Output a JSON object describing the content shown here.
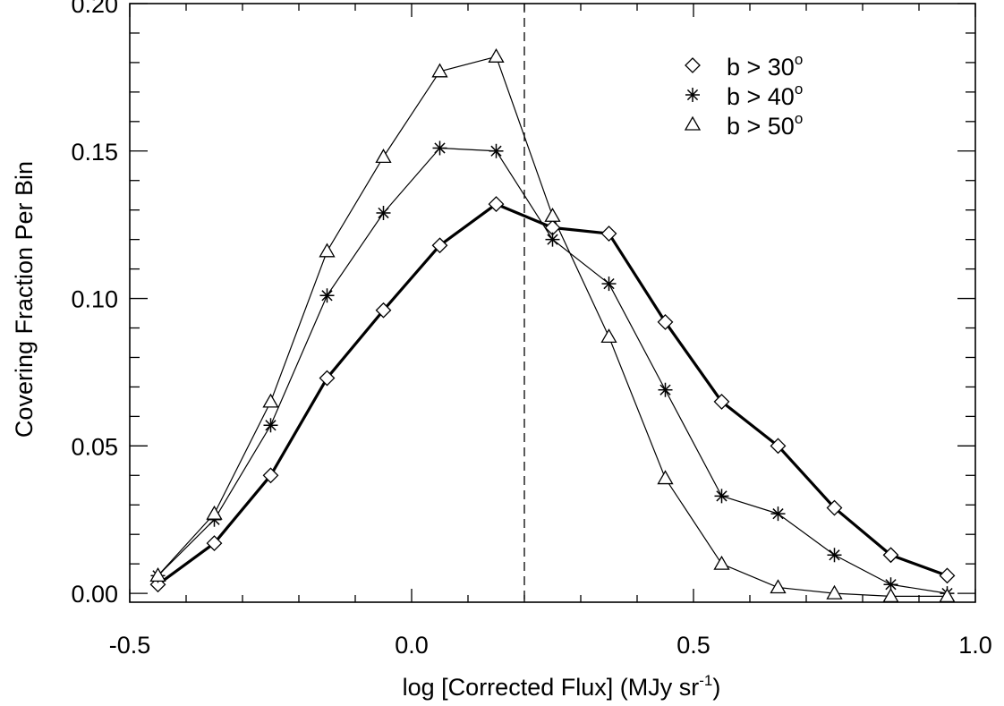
{
  "chart_data": {
    "type": "line",
    "title": "",
    "xlabel": "log [Corrected Flux] (MJy sr",
    "xlabel_sup": "-1",
    "xlabel_suffix": ")",
    "ylabel": "Covering Fraction Per Bin",
    "xlim": [
      -0.5,
      1.0
    ],
    "ylim": [
      -0.003,
      0.2
    ],
    "xticks": [
      -0.5,
      0.0,
      0.5,
      1.0
    ],
    "xtick_labels": [
      "-0.5",
      "0.0",
      "0.5",
      "1.0"
    ],
    "xminor_step": 0.1,
    "yticks": [
      0.0,
      0.05,
      0.1,
      0.15,
      0.2
    ],
    "ytick_labels": [
      "0.00",
      "0.05",
      "0.10",
      "0.15",
      "0.20"
    ],
    "yminor_step": 0.01,
    "grid": false,
    "legend_position": "top-right",
    "reference_line": {
      "x": 0.2,
      "style": "dashed"
    },
    "x": [
      -0.45,
      -0.35,
      -0.25,
      -0.15,
      -0.05,
      0.05,
      0.15,
      0.25,
      0.35,
      0.45,
      0.55,
      0.65,
      0.75,
      0.85,
      0.95
    ],
    "series": [
      {
        "name": "b > 30",
        "name_sup": "o",
        "marker": "diamond",
        "line": "thick",
        "values": [
          0.003,
          0.017,
          0.04,
          0.073,
          0.096,
          0.118,
          0.132,
          0.124,
          0.122,
          0.092,
          0.065,
          0.05,
          0.029,
          0.013,
          0.006
        ]
      },
      {
        "name": "b > 40",
        "name_sup": "o",
        "marker": "asterisk",
        "line": "thin",
        "values": [
          0.006,
          0.025,
          0.057,
          0.101,
          0.129,
          0.151,
          0.15,
          0.12,
          0.105,
          0.069,
          0.033,
          0.027,
          0.013,
          0.003,
          0.0
        ]
      },
      {
        "name": "b > 50",
        "name_sup": "o",
        "marker": "triangle",
        "line": "thin",
        "values": [
          0.006,
          0.027,
          0.065,
          0.116,
          0.148,
          0.177,
          0.182,
          0.128,
          0.087,
          0.039,
          0.01,
          0.002,
          0.0,
          -0.001,
          -0.001
        ]
      }
    ]
  }
}
